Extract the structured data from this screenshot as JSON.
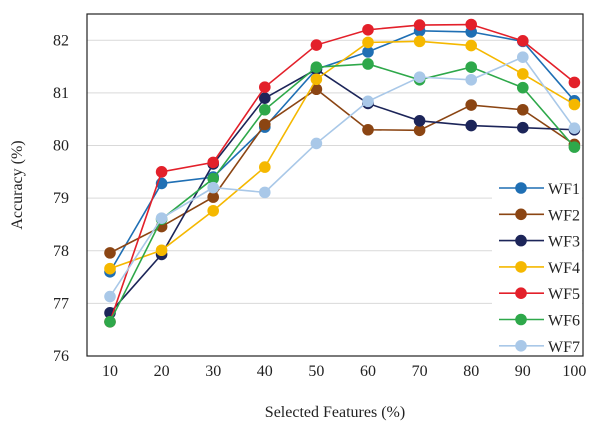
{
  "chart_data": {
    "type": "line",
    "xlabel": "Selected Features (%)",
    "ylabel": "Accuracy (%)",
    "categories": [
      "10",
      "20",
      "30",
      "40",
      "50",
      "60",
      "70",
      "80",
      "90",
      "100"
    ],
    "ylim": [
      76,
      82.5
    ],
    "yticks": [
      "76",
      "77",
      "78",
      "79",
      "80",
      "81",
      "82"
    ],
    "grid": "horizontal",
    "legend_position": "right",
    "series": [
      {
        "name": "WF1",
        "color": "#1f6fb4",
        "values": [
          77.6,
          79.28,
          79.4,
          80.35,
          81.45,
          81.78,
          82.18,
          82.16,
          81.98,
          80.85
        ]
      },
      {
        "name": "WF2",
        "color": "#8b4513",
        "values": [
          77.96,
          78.46,
          79.02,
          80.4,
          81.07,
          80.3,
          80.29,
          80.77,
          80.68,
          80.02
        ]
      },
      {
        "name": "WF3",
        "color": "#1c2559",
        "values": [
          76.82,
          77.93,
          79.65,
          80.9,
          81.45,
          80.8,
          80.47,
          80.38,
          80.34,
          80.3
        ]
      },
      {
        "name": "WF4",
        "color": "#f5b800",
        "values": [
          77.66,
          78.01,
          78.76,
          79.59,
          81.26,
          81.96,
          81.98,
          81.9,
          81.36,
          80.78
        ]
      },
      {
        "name": "WF5",
        "color": "#e3202a",
        "values": [
          76.65,
          79.5,
          79.68,
          81.11,
          81.91,
          82.2,
          82.29,
          82.3,
          81.99,
          81.2
        ]
      },
      {
        "name": "WF6",
        "color": "#2ea84a",
        "values": [
          76.65,
          78.6,
          79.37,
          80.68,
          81.49,
          81.55,
          81.25,
          81.49,
          81.1,
          79.97
        ]
      },
      {
        "name": "WF7",
        "color": "#a9c8e8",
        "values": [
          77.13,
          78.62,
          79.2,
          79.11,
          80.04,
          80.84,
          81.3,
          81.25,
          81.68,
          80.33
        ]
      }
    ]
  }
}
